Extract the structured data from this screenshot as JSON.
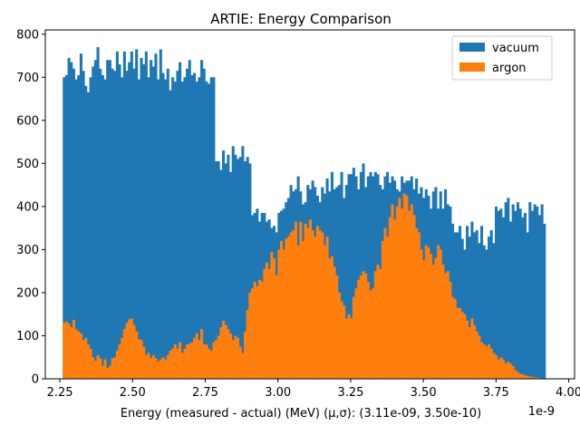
{
  "chart_data": {
    "type": "bar",
    "title": "ARTIE: Energy Comparison",
    "xlabel": "Energy (measured - actual) (MeV) (μ,σ): (3.11e-09, 3.50e-10)",
    "ylabel": "",
    "x_offset_text": "1e-9",
    "xlim": [
      2.2,
      4.02
    ],
    "ylim": [
      0,
      810
    ],
    "x_ticks": [
      2.25,
      2.5,
      2.75,
      3.0,
      3.25,
      3.5,
      3.75,
      4.0
    ],
    "x_tick_labels": [
      "2.25",
      "2.50",
      "2.75",
      "3.00",
      "3.25",
      "3.50",
      "3.75",
      "4.00"
    ],
    "y_ticks": [
      0,
      100,
      200,
      300,
      400,
      500,
      600,
      700,
      800
    ],
    "y_tick_labels": [
      "0",
      "100",
      "200",
      "300",
      "400",
      "500",
      "600",
      "700",
      "800"
    ],
    "bin_start": 2.26,
    "bin_width": 0.0083,
    "legend_position": "top-right",
    "series": [
      {
        "name": "vacuum",
        "color": "#1f77b4",
        "values": [
          700,
          705,
          745,
          735,
          720,
          695,
          705,
          755,
          715,
          680,
          665,
          700,
          725,
          740,
          770,
          720,
          705,
          695,
          740,
          740,
          720,
          715,
          760,
          730,
          700,
          760,
          715,
          735,
          760,
          720,
          765,
          695,
          745,
          730,
          760,
          700,
          740,
          725,
          755,
          695,
          765,
          710,
          695,
          720,
          670,
          700,
          690,
          715,
          735,
          690,
          700,
          720,
          740,
          705,
          710,
          690,
          700,
          740,
          720,
          690,
          685,
          700,
          700,
          505,
          505,
          485,
          530,
          500,
          520,
          480,
          540,
          520,
          510,
          515,
          540,
          505,
          515,
          500,
          380,
          385,
          395,
          365,
          385,
          385,
          365,
          370,
          350,
          355,
          340,
          385,
          390,
          395,
          410,
          420,
          450,
          435,
          440,
          470,
          435,
          405,
          410,
          450,
          440,
          460,
          445,
          425,
          410,
          445,
          430,
          465,
          435,
          480,
          440,
          445,
          450,
          480,
          420,
          450,
          475,
          475,
          490,
          470,
          440,
          480,
          500,
          445,
          470,
          480,
          470,
          480,
          475,
          450,
          440,
          470,
          480,
          455,
          470,
          460,
          440,
          435,
          470,
          455,
          460,
          460,
          470,
          440,
          465,
          430,
          445,
          420,
          440,
          425,
          395,
          435,
          445,
          395,
          435,
          395,
          440,
          405,
          400,
          360,
          340,
          340,
          355,
          325,
          300,
          355,
          330,
          365,
          340,
          345,
          315,
          355,
          310,
          300,
          330,
          345,
          315,
          400,
          390,
          395,
          375,
          410,
          420,
          365,
          405,
          390,
          410,
          395,
          375,
          385,
          340,
          410,
          390,
          405,
          400,
          380,
          405,
          360
        ]
      },
      {
        "name": "argon",
        "color": "#ff7f0e",
        "values": [
          130,
          133,
          128,
          120,
          137,
          115,
          110,
          105,
          90,
          95,
          80,
          70,
          50,
          42,
          55,
          48,
          30,
          45,
          25,
          30,
          48,
          50,
          65,
          80,
          95,
          115,
          130,
          138,
          140,
          125,
          110,
          92,
          90,
          75,
          55,
          60,
          48,
          55,
          48,
          40,
          45,
          50,
          45,
          55,
          65,
          70,
          80,
          70,
          85,
          60,
          70,
          80,
          82,
          85,
          95,
          105,
          90,
          115,
          80,
          80,
          70,
          65,
          85,
          90,
          100,
          120,
          135,
          125,
          115,
          105,
          90,
          100,
          95,
          75,
          60,
          110,
          160,
          200,
          210,
          225,
          215,
          230,
          225,
          255,
          270,
          255,
          295,
          280,
          240,
          300,
          320,
          300,
          325,
          330,
          340,
          345,
          365,
          310,
          365,
          320,
          360,
          350,
          370,
          345,
          330,
          355,
          345,
          340,
          310,
          330,
          280,
          285,
          260,
          240,
          200,
          180,
          170,
          140,
          150,
          140,
          190,
          210,
          230,
          240,
          250,
          245,
          225,
          205,
          210,
          250,
          265,
          255,
          320,
          350,
          330,
          375,
          405,
          370,
          400,
          420,
          395,
          430,
          425,
          390,
          405,
          380,
          350,
          340,
          300,
          275,
          310,
          305,
          290,
          265,
          280,
          310,
          300,
          265,
          245,
          250,
          225,
          190,
          185,
          165,
          165,
          155,
          150,
          135,
          120,
          140,
          125,
          110,
          100,
          85,
          80,
          75,
          80,
          70,
          60,
          55,
          45,
          50,
          45,
          35,
          40,
          35,
          30,
          20,
          15,
          12,
          10,
          8,
          7,
          5,
          5,
          3,
          3,
          2,
          1,
          1
        ]
      }
    ]
  }
}
